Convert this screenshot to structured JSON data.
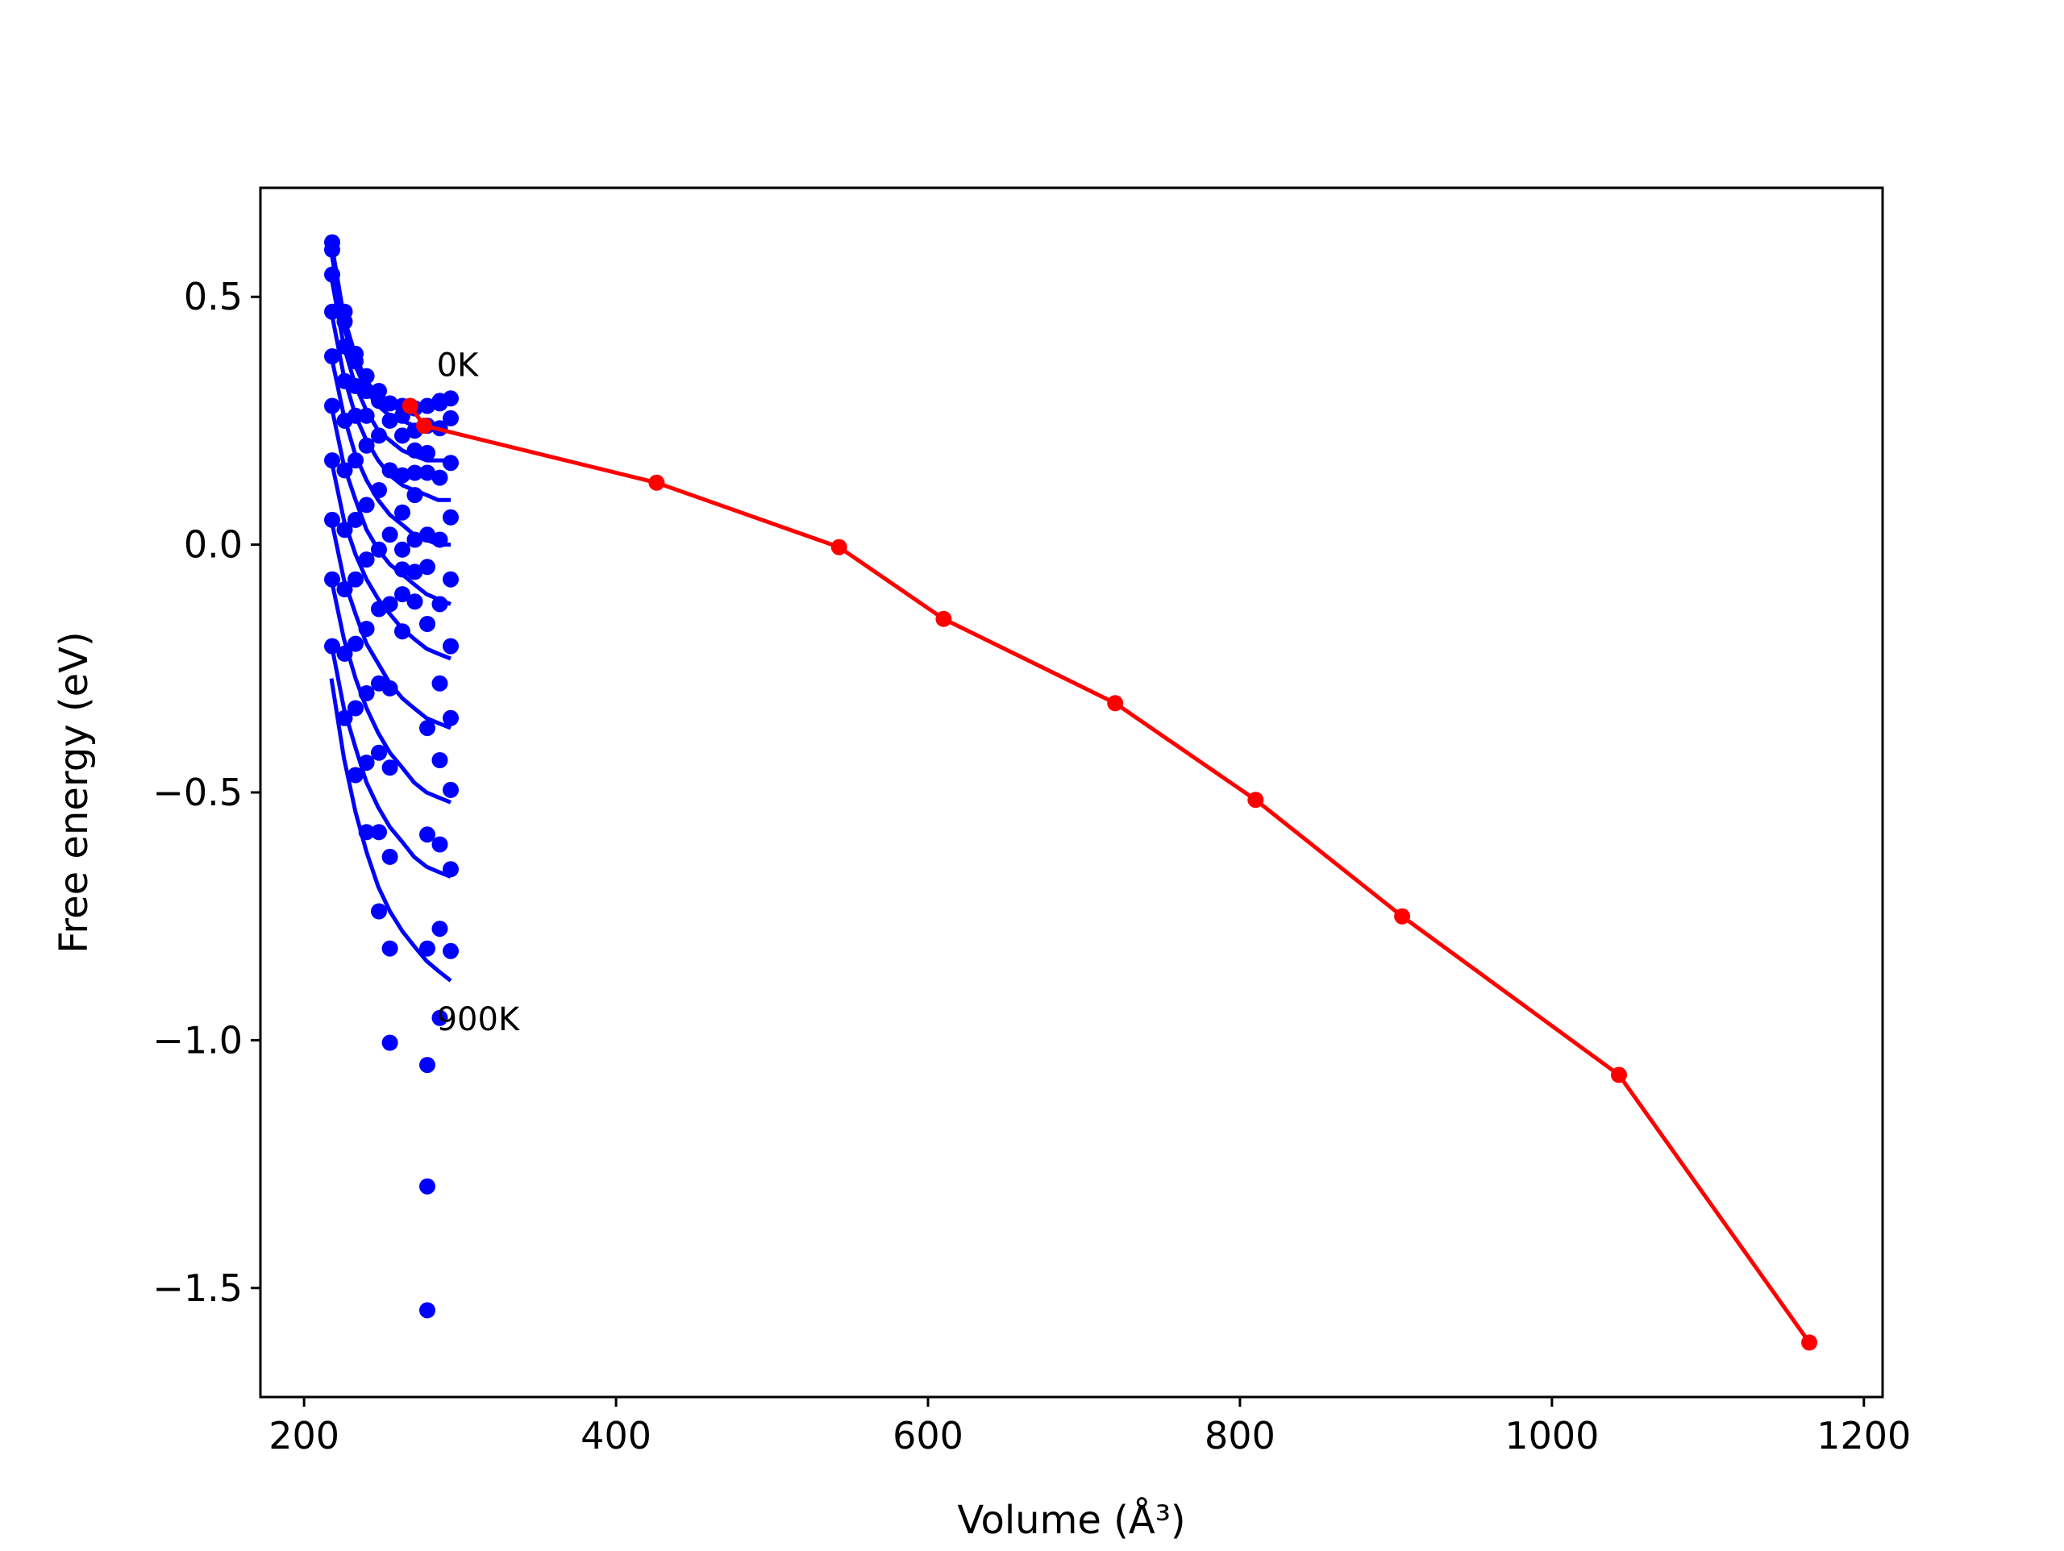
{
  "chart_data": {
    "type": "scatter",
    "title": "",
    "xlabel": "Volume (Å³)",
    "ylabel": "Free energy (eV)",
    "xlim": [
      172,
      1212
    ],
    "ylim": [
      -1.72,
      0.72
    ],
    "xticks": [
      200,
      400,
      600,
      800,
      1000,
      1200
    ],
    "yticks": [
      -1.5,
      -1.0,
      -0.5,
      0.0,
      0.5
    ],
    "xtick_labels": [
      "200",
      "400",
      "600",
      "800",
      "1000",
      "1200"
    ],
    "ytick_labels": [
      "−1.5",
      "−1.0",
      "−0.5",
      "0.0",
      "0.5"
    ],
    "grid": false,
    "legend": "none",
    "colors": {
      "isotherm": "#0000ff",
      "minimum_path": "#ff0000"
    },
    "annotations": [
      {
        "text": "0K",
        "x": 285,
        "y": 0.34
      },
      {
        "text": "900K",
        "x": 285,
        "y": -0.98
      }
    ],
    "volumes": [
      217.5,
      225.5,
      233.0,
      240.0,
      247.5,
      255.0,
      263.0,
      270.5,
      278.5,
      286.0,
      294.0
    ],
    "isotherms": [
      [
        0.61,
        0.46,
        0.38,
        0.33,
        0.3,
        0.28,
        0.27,
        0.27,
        0.28,
        0.29,
        0.29
      ],
      [
        0.59,
        0.44,
        0.36,
        0.31,
        0.28,
        0.26,
        0.25,
        0.24,
        0.24,
        0.24,
        0.25
      ],
      [
        0.54,
        0.4,
        0.32,
        0.27,
        0.23,
        0.21,
        0.19,
        0.18,
        0.17,
        0.17,
        0.17
      ],
      [
        0.47,
        0.34,
        0.26,
        0.21,
        0.17,
        0.14,
        0.12,
        0.11,
        0.1,
        0.09,
        0.09
      ],
      [
        0.38,
        0.26,
        0.18,
        0.13,
        0.09,
        0.06,
        0.04,
        0.02,
        0.01,
        0.0,
        0.0
      ],
      [
        0.28,
        0.16,
        0.09,
        0.03,
        -0.01,
        -0.04,
        -0.06,
        -0.08,
        -0.1,
        -0.11,
        -0.12
      ],
      [
        0.17,
        0.05,
        -0.02,
        -0.07,
        -0.11,
        -0.14,
        -0.17,
        -0.19,
        -0.21,
        -0.22,
        -0.23
      ],
      [
        0.05,
        -0.07,
        -0.14,
        -0.2,
        -0.24,
        -0.28,
        -0.31,
        -0.33,
        -0.35,
        -0.36,
        -0.37
      ],
      [
        -0.07,
        -0.19,
        -0.27,
        -0.33,
        -0.38,
        -0.42,
        -0.45,
        -0.48,
        -0.5,
        -0.51,
        -0.52
      ],
      [
        -0.2,
        -0.33,
        -0.41,
        -0.48,
        -0.53,
        -0.57,
        -0.6,
        -0.63,
        -0.65,
        -0.66,
        -0.67
      ],
      [
        -0.27,
        -0.43,
        -0.54,
        -0.62,
        -0.69,
        -0.74,
        -0.78,
        -0.81,
        -0.84,
        -0.86,
        -0.88
      ]
    ],
    "isotherm_points": [
      [
        218,
        0.61
      ],
      [
        218,
        0.595
      ],
      [
        218,
        0.545
      ],
      [
        218,
        0.47
      ],
      [
        218,
        0.38
      ],
      [
        218,
        0.28
      ],
      [
        218,
        0.17
      ],
      [
        218,
        0.05
      ],
      [
        218,
        -0.07
      ],
      [
        218,
        -0.205
      ],
      [
        226,
        0.47
      ],
      [
        226,
        0.45
      ],
      [
        226,
        0.4
      ],
      [
        226,
        0.33
      ],
      [
        226,
        0.25
      ],
      [
        226,
        0.15
      ],
      [
        226,
        0.03
      ],
      [
        226,
        -0.09
      ],
      [
        226,
        -0.22
      ],
      [
        226,
        -0.35
      ],
      [
        233,
        0.385
      ],
      [
        233,
        0.37
      ],
      [
        233,
        0.32
      ],
      [
        233,
        0.26
      ],
      [
        233,
        0.17
      ],
      [
        233,
        0.05
      ],
      [
        233,
        -0.07
      ],
      [
        233,
        -0.2
      ],
      [
        233,
        -0.33
      ],
      [
        233,
        -0.465
      ],
      [
        240,
        0.34
      ],
      [
        240,
        0.31
      ],
      [
        240,
        0.26
      ],
      [
        240,
        0.2
      ],
      [
        240,
        0.08
      ],
      [
        240,
        -0.03
      ],
      [
        240,
        -0.17
      ],
      [
        240,
        -0.3
      ],
      [
        240,
        -0.44
      ],
      [
        240,
        -0.58
      ],
      [
        248,
        0.31
      ],
      [
        248,
        0.29
      ],
      [
        248,
        0.22
      ],
      [
        248,
        0.11
      ],
      [
        248,
        -0.01
      ],
      [
        248,
        -0.13
      ],
      [
        248,
        -0.28
      ],
      [
        248,
        -0.42
      ],
      [
        248,
        -0.58
      ],
      [
        248,
        -0.74
      ],
      [
        255,
        0.285
      ],
      [
        255,
        0.25
      ],
      [
        255,
        0.15
      ],
      [
        255,
        0.02
      ],
      [
        255,
        -0.12
      ],
      [
        255,
        -0.29
      ],
      [
        255,
        -0.45
      ],
      [
        255,
        -0.63
      ],
      [
        255,
        -0.815
      ],
      [
        255,
        -1.005
      ],
      [
        263,
        0.28
      ],
      [
        263,
        0.26
      ],
      [
        263,
        0.22
      ],
      [
        263,
        0.14
      ],
      [
        263,
        0.065
      ],
      [
        263,
        -0.01
      ],
      [
        263,
        -0.05
      ],
      [
        263,
        -0.1
      ],
      [
        263,
        -0.175
      ],
      [
        271,
        0.275
      ],
      [
        271,
        0.23
      ],
      [
        271,
        0.19
      ],
      [
        271,
        0.145
      ],
      [
        271,
        0.1
      ],
      [
        271,
        0.01
      ],
      [
        271,
        -0.055
      ],
      [
        271,
        -0.115
      ],
      [
        279,
        0.28
      ],
      [
        279,
        0.24
      ],
      [
        279,
        0.185
      ],
      [
        279,
        0.145
      ],
      [
        279,
        0.02
      ],
      [
        279,
        -0.045
      ],
      [
        279,
        -0.16
      ],
      [
        279,
        -0.37
      ],
      [
        279,
        -0.585
      ],
      [
        279,
        -0.815
      ],
      [
        279,
        -1.05
      ],
      [
        279,
        -1.295
      ],
      [
        279,
        -1.545
      ],
      [
        287,
        0.29
      ],
      [
        287,
        0.285
      ],
      [
        287,
        0.235
      ],
      [
        287,
        0.135
      ],
      [
        287,
        0.01
      ],
      [
        287,
        -0.12
      ],
      [
        287,
        -0.28
      ],
      [
        287,
        -0.435
      ],
      [
        287,
        -0.605
      ],
      [
        287,
        -0.775
      ],
      [
        287,
        -0.955
      ],
      [
        294,
        0.295
      ],
      [
        294,
        0.255
      ],
      [
        294,
        0.165
      ],
      [
        294,
        0.055
      ],
      [
        294,
        -0.07
      ],
      [
        294,
        -0.205
      ],
      [
        294,
        -0.35
      ],
      [
        294,
        -0.495
      ],
      [
        294,
        -0.655
      ],
      [
        294,
        -0.82
      ]
    ],
    "series": [
      {
        "x": [
          268,
          277,
          426,
          543,
          610,
          720,
          810,
          904,
          1043,
          1165
        ],
        "y": [
          0.28,
          0.24,
          0.125,
          -0.005,
          -0.15,
          -0.32,
          -0.515,
          -0.75,
          -1.07,
          -1.61
        ]
      }
    ]
  }
}
